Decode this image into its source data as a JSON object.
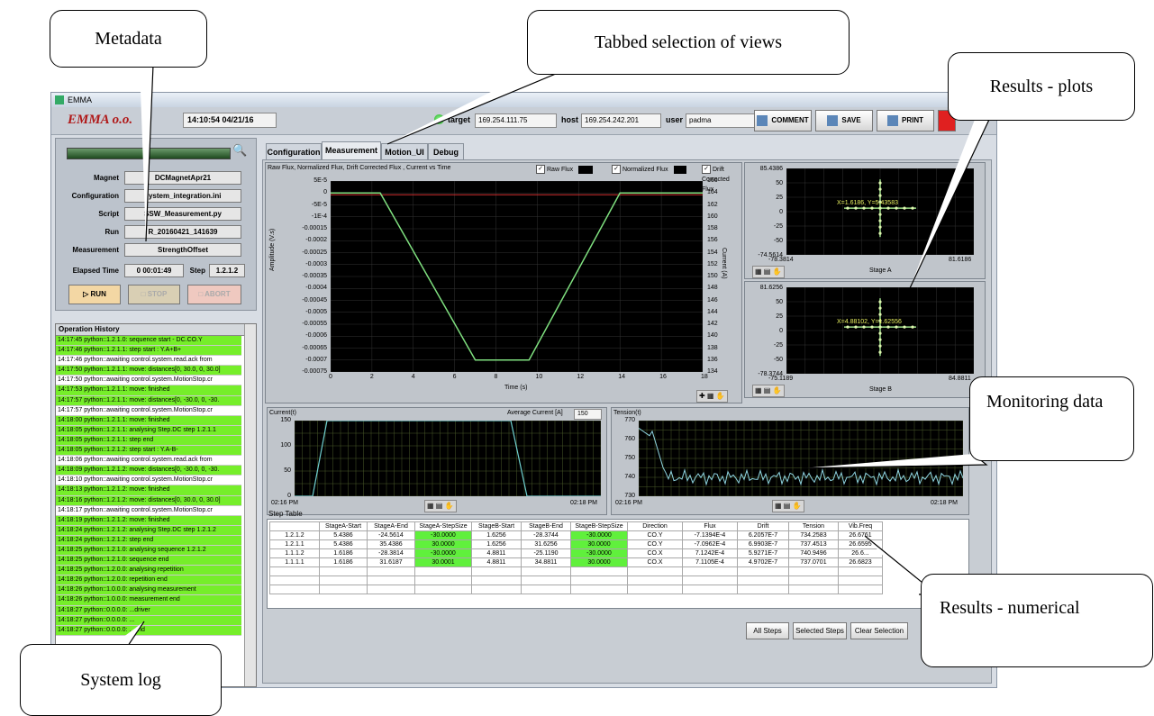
{
  "window": {
    "title": "EMMA",
    "brand": "EMMA o.o.",
    "timestamp": "14:10:54 04/21/16"
  },
  "toolbar": {
    "target_label": "target",
    "target_value": "169.254.111.75",
    "host_label": "host",
    "host_value": "169.254.242.201",
    "user_label": "user",
    "user_value": "padma",
    "comment": "COMMENT",
    "save": "SAVE",
    "print": "PRINT"
  },
  "metadata": [
    {
      "k": "Magnet",
      "v": "DCMagnetApr21"
    },
    {
      "k": "Configuration",
      "v": "system_integration.ini"
    },
    {
      "k": "Script",
      "v": "SSW_Measurement.py"
    },
    {
      "k": "Run",
      "v": "R_20160421_141639"
    },
    {
      "k": "Measurement",
      "v": "StrengthOffset"
    }
  ],
  "elapsed": {
    "label": "Elapsed Time",
    "value": "0 00:01:49",
    "step_label": "Step",
    "step_value": "1.2.1.2"
  },
  "controls": {
    "run": "RUN",
    "stop": "STOP",
    "abort": "ABORT"
  },
  "log": {
    "title": "Operation History",
    "rows": [
      {
        "t": "14:17:45 python::1.2.1.0: sequence start - DC.CO.Y",
        "g": true
      },
      {
        "t": "14:17:46 python::1.2.1.1: step start : Y.A+B+",
        "g": true
      },
      {
        "t": "14:17:46 python::awaiting control.system.read.ack from",
        "g": false
      },
      {
        "t": "14:17:50 python::1.2.1.1: move: distances[0, 30.0, 0, 30.0]",
        "g": true
      },
      {
        "t": "14:17:50 python::awaiting control.system.MotionStop.cr",
        "g": false
      },
      {
        "t": "14:17:53 python::1.2.1.1: move: finished",
        "g": true
      },
      {
        "t": "14:17:57 python::1.2.1.1: move: distances[0, -30.0, 0, -30.",
        "g": true
      },
      {
        "t": "14:17:57 python::awaiting control.system.MotionStop.cr",
        "g": false
      },
      {
        "t": "14:18:00 python::1.2.1.1: move: finished",
        "g": true
      },
      {
        "t": "14:18:05 python::1.2.1.1: analysing Step.DC step 1.2.1.1",
        "g": true
      },
      {
        "t": "14:18:05 python::1.2.1.1: step end",
        "g": true
      },
      {
        "t": "14:18:05 python::1.2.1.2: step start : Y.A-B-",
        "g": true
      },
      {
        "t": "14:18:06 python::awaiting control.system.read.ack from",
        "g": false
      },
      {
        "t": "14:18:09 python::1.2.1.2: move: distances[0, -30.0, 0, -30.",
        "g": true
      },
      {
        "t": "14:18:10 python::awaiting control.system.MotionStop.cr",
        "g": false
      },
      {
        "t": "14:18:13 python::1.2.1.2: move: finished",
        "g": true
      },
      {
        "t": "14:18:16 python::1.2.1.2: move: distances[0, 30.0, 0, 30.0]",
        "g": true
      },
      {
        "t": "14:18:17 python::awaiting control.system.MotionStop.cr",
        "g": false
      },
      {
        "t": "14:18:19 python::1.2.1.2: move: finished",
        "g": true
      },
      {
        "t": "14:18:24 python::1.2.1.2: analysing Step.DC step 1.2.1.2",
        "g": true
      },
      {
        "t": "14:18:24 python::1.2.1.2: step end",
        "g": true
      },
      {
        "t": "14:18:25 python::1.2.1.0: analysing sequence 1.2.1.2",
        "g": true
      },
      {
        "t": "14:18:25 python::1.2.1.0: sequence end",
        "g": true
      },
      {
        "t": "14:18:25 python::1.2.0.0: analysing repetition",
        "g": true
      },
      {
        "t": "14:18:26 python::1.2.0.0: repetition end",
        "g": true
      },
      {
        "t": "14:18:26 python::1.0.0.0: analysing measurement",
        "g": true
      },
      {
        "t": "14:18:26 python::1.0.0.0: measurement end",
        "g": true
      },
      {
        "t": "14:18:27 python::0.0.0.0: ...driver",
        "g": true
      },
      {
        "t": "14:18:27 python::0.0.0.0: ...",
        "g": true
      },
      {
        "t": "14:18:27 python::0.0.0.0: ...end",
        "g": true
      }
    ]
  },
  "tabs": [
    "Configuration",
    "Measurement",
    "Motion_UI",
    "Debug"
  ],
  "main_graph": {
    "title": "Raw Flux, Normalized Flux, Drift Corrected Flux , Current vs Time",
    "legend": [
      "Raw Flux",
      "Normalized Flux",
      "Drift Corrected Flux",
      "Current"
    ],
    "xlabel": "Time (s)",
    "ylabel": "Amplitude (V.s)",
    "y2label": "Current (A)",
    "xticks": [
      "0",
      "2",
      "4",
      "6",
      "8",
      "10",
      "12",
      "14",
      "16",
      "18"
    ],
    "yticks": [
      "5E-5",
      "0",
      "-5E-5",
      "-1E-4",
      "-0.00015",
      "-0.0002",
      "-0.00025",
      "-0.0003",
      "-0.00035",
      "-0.0004",
      "-0.00045",
      "-0.0005",
      "-0.00055",
      "-0.0006",
      "-0.00065",
      "-0.0007",
      "-0.00075"
    ],
    "y2ticks": [
      "166",
      "164",
      "162",
      "160",
      "158",
      "156",
      "154",
      "152",
      "150",
      "148",
      "146",
      "144",
      "142",
      "140",
      "138",
      "136",
      "134"
    ]
  },
  "chart_data": [
    {
      "type": "line",
      "title": "Raw Flux, Normalized Flux, Drift Corrected Flux , Current vs Time",
      "xlabel": "Time (s)",
      "ylabel": "Amplitude (V.s)",
      "xlim": [
        0,
        18
      ],
      "ylim": [
        -0.00075,
        5e-05
      ],
      "series": [
        {
          "name": "Drift Corrected Flux",
          "x": [
            0,
            2.4,
            7.0,
            9.6,
            14.0,
            18
          ],
          "y": [
            0,
            0,
            -0.0007,
            -0.0007,
            0,
            0
          ]
        },
        {
          "name": "Current",
          "x": [
            0,
            18
          ],
          "y": [
            0,
            0
          ]
        }
      ]
    },
    {
      "type": "scatter",
      "title": "Stage A",
      "xlim": [
        -78.3814,
        81.6186
      ],
      "ylim": [
        -74.5614,
        85.4386
      ],
      "xticks": [
        "-78.3814",
        "81.6186"
      ],
      "yticks": [
        "85.4386",
        "50",
        "25",
        "0",
        "-25",
        "-50",
        "-74.5614"
      ],
      "annotation": "X=1.6186, Y=5.43583"
    },
    {
      "type": "scatter",
      "title": "Stage B",
      "xlim": [
        -75.1189,
        84.8811
      ],
      "ylim": [
        -78.3744,
        81.6256
      ],
      "xticks": [
        "-75.1189",
        "84.8811"
      ],
      "yticks": [
        "81.6256",
        "50",
        "25",
        "0",
        "-25",
        "-50",
        "-78.3744"
      ],
      "annotation": "X=4.88102, Y=1.62556"
    },
    {
      "type": "line",
      "title": "Current(t)",
      "ylim": [
        0,
        150
      ],
      "yticks": [
        "150",
        "100",
        "50",
        "0"
      ],
      "xticks": [
        "02:16 PM",
        "02:18 PM"
      ],
      "average_label": "Average Current [A]",
      "average": "150"
    },
    {
      "type": "line",
      "title": "Tension(t)",
      "ylim": [
        730,
        770
      ],
      "yticks": [
        "770",
        "760",
        "750",
        "740",
        "730"
      ],
      "xticks": [
        "02:16 PM",
        "02:18 PM"
      ]
    }
  ],
  "table": {
    "title": "Step Table",
    "headers": [
      "",
      "StageA-Start",
      "StageA-End",
      "StageA-StepSize",
      "StageB-Start",
      "StageB-End",
      "StageB-StepSize",
      "Direction",
      "Flux",
      "Drift",
      "Tension",
      "Vib.Freq"
    ],
    "rows": [
      [
        "1.2.1.2",
        "5.4386",
        "-24.5614",
        "-30.0000",
        "1.6256",
        "-28.3744",
        "-30.0000",
        "CO.Y",
        "-7.1394E-4",
        "6.2057E-7",
        "734.2583",
        "26.6761"
      ],
      [
        "1.2.1.1",
        "5.4386",
        "35.4386",
        "30.0000",
        "1.6256",
        "31.6256",
        "30.0000",
        "CO.Y",
        "-7.0962E-4",
        "6.9903E-7",
        "737.4513",
        "26.6595"
      ],
      [
        "1.1.1.2",
        "1.6186",
        "-28.3814",
        "-30.0000",
        "4.8811",
        "-25.1190",
        "-30.0000",
        "CO.X",
        "7.1242E-4",
        "5.9271E-7",
        "740.9496",
        "26.6..."
      ],
      [
        "1.1.1.1",
        "1.6186",
        "31.6187",
        "30.0001",
        "4.8811",
        "34.8811",
        "30.0000",
        "CO.X",
        "7.1105E-4",
        "4.9702E-7",
        "737.0701",
        "26.6823"
      ]
    ],
    "buttons": [
      "All Steps",
      "Selected Steps",
      "Clear Selection"
    ]
  },
  "callouts": {
    "metadata": "Metadata",
    "tabs": "Tabbed selection of views",
    "plots": "Results - plots",
    "monitoring": "Monitoring data",
    "numerical": "Results - numerical",
    "syslog": "System log"
  },
  "colors": {
    "log_green": "#76ee2a",
    "step_highlight": "#60f03c",
    "brand_red": "#b01818",
    "trace_green": "#7fe07f",
    "trace_red": "#d23030"
  }
}
